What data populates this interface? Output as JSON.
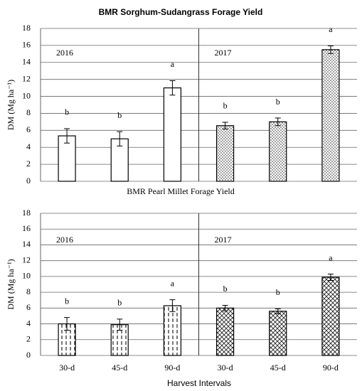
{
  "chart_data": [
    {
      "type": "bar",
      "title": "BMR Sorghum-Sudangrass Forage Yield",
      "ylabel": "DM (Mg ha⁻¹)",
      "categories": [
        null,
        null,
        null
      ],
      "series": [
        {
          "name": "2016",
          "pattern": "open",
          "values": [
            5.35,
            5.0,
            11.0
          ],
          "errors": [
            0.85,
            0.85,
            0.85
          ],
          "letters": [
            "b",
            "b",
            "a"
          ]
        },
        {
          "name": "2017",
          "pattern": "dots",
          "values": [
            6.55,
            7.0,
            15.5
          ],
          "errors": [
            0.4,
            0.45,
            0.45
          ],
          "letters": [
            "b",
            "b",
            "a"
          ]
        }
      ],
      "ylim": [
        0,
        18
      ],
      "yticks": [
        0,
        2,
        4,
        6,
        8,
        10,
        12,
        14,
        16,
        18
      ],
      "grid": true
    },
    {
      "type": "bar",
      "title": "BMR Pearl Millet Forage Yield",
      "ylabel": "DM (Mg ha⁻¹)",
      "xlabel": "Harvest Intervals",
      "categories": [
        "30-d",
        "45-d",
        "90-d"
      ],
      "series": [
        {
          "name": "2016",
          "pattern": "vdash",
          "values": [
            4.0,
            3.9,
            6.3
          ],
          "errors": [
            0.8,
            0.7,
            0.75
          ],
          "letters": [
            "b",
            "b",
            "a"
          ]
        },
        {
          "name": "2017",
          "pattern": "cross",
          "values": [
            6.0,
            5.6,
            9.9
          ],
          "errors": [
            0.35,
            0.3,
            0.4
          ],
          "letters": [
            "b",
            "b",
            "a"
          ]
        }
      ],
      "ylim": [
        0,
        18
      ],
      "yticks": [
        0,
        2,
        4,
        6,
        8,
        10,
        12,
        14,
        16,
        18
      ],
      "grid": true
    }
  ]
}
